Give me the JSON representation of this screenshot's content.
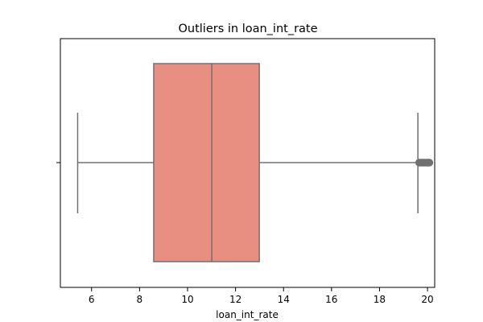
{
  "chart_data": {
    "type": "box",
    "title": "Outliers in loan_int_rate",
    "xlabel": "loan_int_rate",
    "ylabel": "",
    "xlim": [
      4.7,
      20.3
    ],
    "xticks": [
      6,
      8,
      10,
      12,
      14,
      16,
      18,
      20
    ],
    "xtick_labels": [
      "6",
      "8",
      "10",
      "12",
      "14",
      "16",
      "18",
      "20"
    ],
    "grid": false,
    "box": {
      "whisker_low": 5.42,
      "q1": 8.59,
      "median": 11.01,
      "q3": 12.99,
      "whisker_high": 19.6,
      "outliers": [
        19.65,
        19.69,
        19.74,
        19.79,
        19.85,
        19.9,
        19.96,
        20.0,
        20.03,
        20.08
      ]
    },
    "colors": {
      "box_fill": "#e88f82",
      "line": "#707070",
      "outlier": "#707070"
    }
  }
}
